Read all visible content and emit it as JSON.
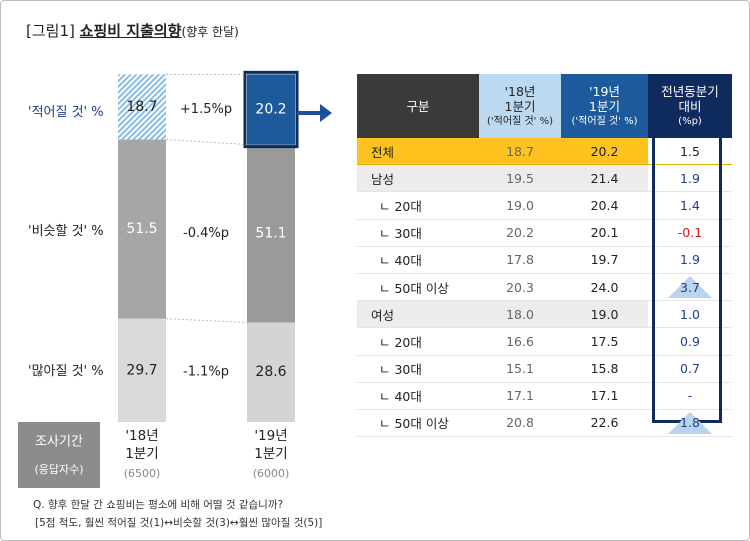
{
  "title": {
    "fig": "[그림1]",
    "main": "쇼핑비 지출의향",
    "sub": "(향후 한달)"
  },
  "chart_data": {
    "type": "bar",
    "stacked": true,
    "categories": [
      "'18년 1분기",
      "'19년 1분기"
    ],
    "series": [
      {
        "name": "'많아질 것' %",
        "values": [
          29.7,
          28.6
        ],
        "color": "#d9d9d9",
        "change": "-1.1%p"
      },
      {
        "name": "'비슷할 것' %",
        "values": [
          51.5,
          51.1
        ],
        "color": "#a6a6a6",
        "change": "-0.4%p"
      },
      {
        "name": "'적어질 것' %",
        "values": [
          18.7,
          20.2
        ],
        "color": "#9ccaee",
        "change": "+1.5%p"
      }
    ],
    "value_labels": {
      "적어질": [
        "18.7",
        "20.2"
      ],
      "비슷할": [
        "51.5",
        "51.1"
      ],
      "많아질": [
        "29.7",
        "28.6"
      ]
    },
    "ylim": [
      0,
      100
    ],
    "period_label": "조사기간",
    "sample_label": "(응답자수)",
    "periods": [
      {
        "line1": "'18년",
        "line2": "1분기",
        "n": "(6500)"
      },
      {
        "line1": "'19년",
        "line2": "1분기",
        "n": "(6000)"
      }
    ]
  },
  "table": {
    "headers": {
      "c0": "구분",
      "c1a": "'18년",
      "c1b": "1분기",
      "c1c": "('적어질 것' %)",
      "c2a": "'19년",
      "c2b": "1분기",
      "c2c": "('적어질 것' %)",
      "c3a": "전년동분기",
      "c3b": "대비",
      "c3c": "(%p)"
    },
    "rows": [
      {
        "label": "전체",
        "y18": "18.7",
        "y19": "20.2",
        "diff": "1.5"
      },
      {
        "label": "남성",
        "y18": "19.5",
        "y19": "21.4",
        "diff": "1.9"
      },
      {
        "label": "ㄴ 20대",
        "y18": "19.0",
        "y19": "20.4",
        "diff": "1.4"
      },
      {
        "label": "ㄴ 30대",
        "y18": "20.2",
        "y19": "20.1",
        "diff": "-0.1"
      },
      {
        "label": "ㄴ 40대",
        "y18": "17.8",
        "y19": "19.7",
        "diff": "1.9"
      },
      {
        "label": "ㄴ 50대 이상",
        "y18": "20.3",
        "y19": "24.0",
        "diff": "3.7"
      },
      {
        "label": "여성",
        "y18": "18.0",
        "y19": "19.0",
        "diff": "1.0"
      },
      {
        "label": "ㄴ 20대",
        "y18": "16.6",
        "y19": "17.5",
        "diff": "0.9"
      },
      {
        "label": "ㄴ 30대",
        "y18": "15.1",
        "y19": "15.8",
        "diff": "0.7"
      },
      {
        "label": "ㄴ 40대",
        "y18": "17.1",
        "y19": "17.1",
        "diff": "-"
      },
      {
        "label": "ㄴ 50대 이상",
        "y18": "20.8",
        "y19": "22.6",
        "diff": "1.8"
      }
    ]
  },
  "footnote": {
    "q": "Q. 향후 한달 간 쇼핑비는 평소에 비해 어떨 것 같습니까?",
    "scale": "[5점 척도, 훨씬 적어질 것(1)↔비슷할 것(3)↔훨씬 많아질 것(5)]"
  }
}
